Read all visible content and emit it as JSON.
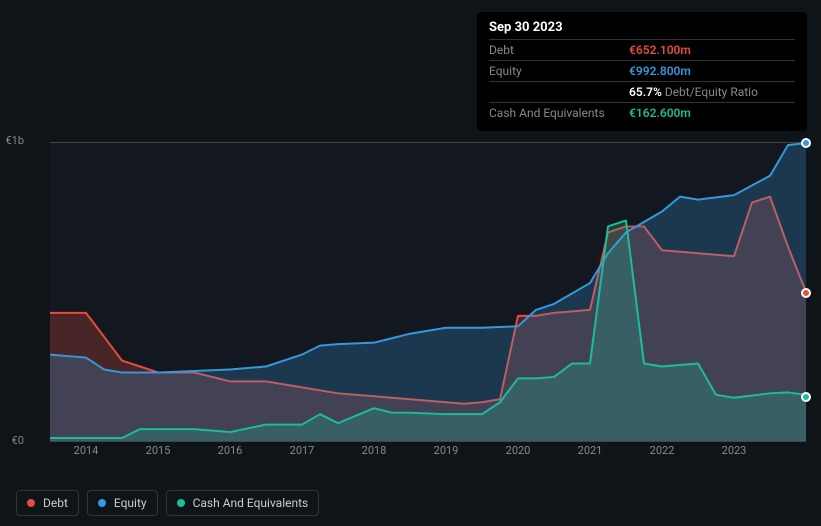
{
  "tooltip": {
    "date": "Sep 30 2023",
    "rows": [
      {
        "label": "Debt",
        "value": "€652.100m",
        "cls": "debt"
      },
      {
        "label": "Equity",
        "value": "€992.800m",
        "cls": "equity"
      },
      {
        "label": "",
        "value": "65.7%",
        "sub": " Debt/Equity Ratio",
        "cls": "ratio"
      },
      {
        "label": "Cash And Equivalents",
        "value": "€162.600m",
        "cls": "cash"
      }
    ]
  },
  "chart": {
    "type": "area",
    "y_axis": {
      "top_label": "€1b",
      "bottom_label": "€0",
      "min": 0,
      "max": 1000
    },
    "x_axis": {
      "min": 2013.5,
      "max": 2024,
      "ticks": [
        2014,
        2015,
        2016,
        2017,
        2018,
        2019,
        2020,
        2021,
        2022,
        2023
      ]
    },
    "background": "#131820",
    "grid_color": "#444444",
    "series": [
      {
        "name": "Debt",
        "stroke": "#e74c3c",
        "fill": "rgba(231,76,60,0.25)",
        "stroke_width": 2,
        "points": [
          [
            2013.5,
            430
          ],
          [
            2013.75,
            430
          ],
          [
            2014,
            430
          ],
          [
            2014.25,
            350
          ],
          [
            2014.5,
            270
          ],
          [
            2014.75,
            250
          ],
          [
            2015,
            230
          ],
          [
            2015.5,
            230
          ],
          [
            2016,
            200
          ],
          [
            2016.5,
            200
          ],
          [
            2017,
            180
          ],
          [
            2017.5,
            160
          ],
          [
            2018,
            150
          ],
          [
            2018.5,
            140
          ],
          [
            2019,
            130
          ],
          [
            2019.25,
            125
          ],
          [
            2019.5,
            130
          ],
          [
            2019.75,
            140
          ],
          [
            2020,
            420
          ],
          [
            2020.25,
            420
          ],
          [
            2020.5,
            430
          ],
          [
            2021,
            440
          ],
          [
            2021.25,
            700
          ],
          [
            2021.5,
            720
          ],
          [
            2021.75,
            720
          ],
          [
            2022,
            640
          ],
          [
            2022.5,
            630
          ],
          [
            2023,
            620
          ],
          [
            2023.25,
            800
          ],
          [
            2023.5,
            820
          ],
          [
            2023.75,
            652
          ],
          [
            2024,
            500
          ]
        ]
      },
      {
        "name": "Equity",
        "stroke": "#3498db",
        "fill": "rgba(52,152,219,0.25)",
        "stroke_width": 2,
        "points": [
          [
            2013.5,
            290
          ],
          [
            2014,
            280
          ],
          [
            2014.25,
            240
          ],
          [
            2014.5,
            230
          ],
          [
            2015,
            230
          ],
          [
            2015.5,
            235
          ],
          [
            2016,
            240
          ],
          [
            2016.5,
            250
          ],
          [
            2017,
            290
          ],
          [
            2017.25,
            320
          ],
          [
            2017.5,
            325
          ],
          [
            2018,
            330
          ],
          [
            2018.5,
            360
          ],
          [
            2018.75,
            370
          ],
          [
            2019,
            380
          ],
          [
            2019.5,
            380
          ],
          [
            2020,
            385
          ],
          [
            2020.25,
            440
          ],
          [
            2020.5,
            460
          ],
          [
            2021,
            530
          ],
          [
            2021.25,
            630
          ],
          [
            2021.5,
            700
          ],
          [
            2022,
            770
          ],
          [
            2022.25,
            820
          ],
          [
            2022.5,
            810
          ],
          [
            2023,
            825
          ],
          [
            2023.5,
            890
          ],
          [
            2023.75,
            993
          ],
          [
            2024,
            1000
          ]
        ]
      },
      {
        "name": "Cash And Equivalents",
        "stroke": "#1abc9c",
        "fill": "rgba(26,188,156,0.25)",
        "stroke_width": 2,
        "points": [
          [
            2013.5,
            10
          ],
          [
            2014,
            10
          ],
          [
            2014.5,
            10
          ],
          [
            2014.75,
            40
          ],
          [
            2015,
            40
          ],
          [
            2015.5,
            40
          ],
          [
            2016,
            30
          ],
          [
            2016.5,
            55
          ],
          [
            2017,
            55
          ],
          [
            2017.25,
            90
          ],
          [
            2017.5,
            60
          ],
          [
            2018,
            110
          ],
          [
            2018.25,
            95
          ],
          [
            2018.5,
            95
          ],
          [
            2019,
            90
          ],
          [
            2019.5,
            90
          ],
          [
            2019.75,
            130
          ],
          [
            2020,
            210
          ],
          [
            2020.25,
            210
          ],
          [
            2020.5,
            215
          ],
          [
            2020.75,
            260
          ],
          [
            2021,
            260
          ],
          [
            2021.25,
            720
          ],
          [
            2021.5,
            740
          ],
          [
            2021.75,
            260
          ],
          [
            2022,
            250
          ],
          [
            2022.5,
            260
          ],
          [
            2022.75,
            155
          ],
          [
            2023,
            145
          ],
          [
            2023.5,
            160
          ],
          [
            2023.75,
            163
          ],
          [
            2024,
            155
          ]
        ]
      }
    ],
    "markers": [
      {
        "x": 2024,
        "y": 1000,
        "color": "#3498db"
      },
      {
        "x": 2024,
        "y": 500,
        "color": "#e74c3c"
      },
      {
        "x": 2024,
        "y": 155,
        "color": "#1abc9c"
      }
    ]
  },
  "legend": [
    {
      "label": "Debt",
      "color": "#e74c3c"
    },
    {
      "label": "Equity",
      "color": "#3498db"
    },
    {
      "label": "Cash And Equivalents",
      "color": "#1abc9c"
    }
  ]
}
